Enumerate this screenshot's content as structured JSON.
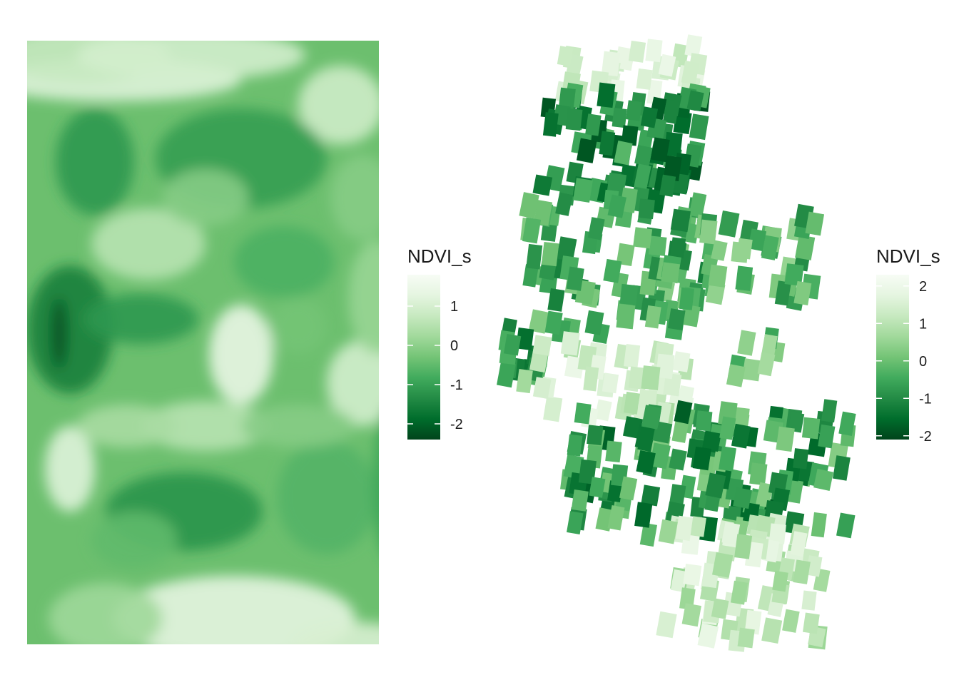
{
  "colors": {
    "low": "#00441b",
    "mid": "#41ab5d",
    "high": "#f7fcf5"
  },
  "chart_data": [
    {
      "type": "heatmap",
      "title": "",
      "xlabel": "",
      "ylabel": "",
      "axes_visible": false,
      "grid": false,
      "legend": {
        "title": "NDVI_s",
        "placement": "right",
        "range": [
          -2.4,
          1.8
        ],
        "ticks": [
          1,
          0,
          -1,
          -2
        ],
        "tick_labels": [
          "1",
          "0",
          "-1",
          "-2"
        ]
      },
      "palette": "Greens",
      "note_values": "continuous smoothed NDVI_s raster; values range about -2.4 to 1.8"
    },
    {
      "type": "scatter",
      "marker": "rectangular plot tiles",
      "title": "",
      "xlabel": "",
      "ylabel": "",
      "axes_visible": false,
      "grid": false,
      "legend": {
        "title": "NDVI_s",
        "placement": "right",
        "range": [
          -2.1,
          2.3
        ],
        "ticks": [
          2,
          1,
          0,
          -1,
          -2
        ],
        "tick_labels": [
          "2",
          "1",
          "0",
          "-1",
          "-2"
        ]
      },
      "palette": "Greens"
    }
  ]
}
